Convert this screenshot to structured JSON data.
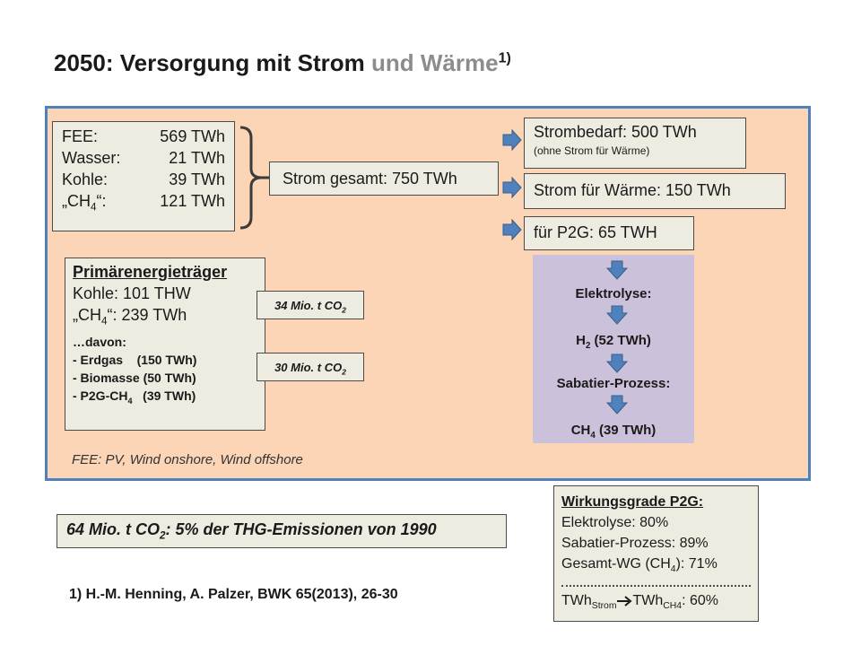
{
  "title": {
    "main": "2050: Versorgung mit Strom",
    "light": "und Wärme",
    "footnote_mark": "1)"
  },
  "fee_box": {
    "rows": [
      {
        "label": "FEE:",
        "value": "569 TWh"
      },
      {
        "label": "Wasser:",
        "value": "21 TWh"
      },
      {
        "label": "Kohle:",
        "value": "39 TWh"
      },
      {
        "label_pre": "„CH",
        "label_sub": "4",
        "label_post": "“:",
        "value": "121 TWh"
      }
    ]
  },
  "strom_gesamt": "Strom gesamt: 750 TWh",
  "strombedarf": {
    "main": "Strombedarf: 500 TWh",
    "sub": "(ohne Strom für Wärme)"
  },
  "strom_waerme": "Strom für Wärme: 150 TWh",
  "p2g": "für P2G: 65 TWH",
  "process": {
    "elektrolyse": "Elektrolyse:",
    "h2_pre": "H",
    "h2_sub": "2",
    "h2_post": " (52 TWh)",
    "sabatier": "Sabatier-Prozess:",
    "ch4_pre": "CH",
    "ch4_sub": "4",
    "ch4_post": " (39 TWh)"
  },
  "primaer": {
    "heading": "Primärenergieträger",
    "kohle": "Kohle: 101 THW",
    "ch4_pre": "„CH",
    "ch4_sub": "4",
    "ch4_post": "“: 239 TWh",
    "davon": "…davon:",
    "erdgas": "- Erdgas    (150 TWh)",
    "biomasse": "- Biomasse (50 TWh)",
    "p2g_pre": "- P2G-CH",
    "p2g_sub": "4",
    "p2g_post": "   (39 TWh)"
  },
  "co2_a": {
    "pre": "34 Mio. t CO",
    "sub": "2"
  },
  "co2_b": {
    "pre": "30 Mio. t CO",
    "sub": "2"
  },
  "fee_note": "FEE: PV, Wind onshore, Wind offshore",
  "emissions": {
    "pre": "64 Mio. t CO",
    "sub": "2",
    "post": ": 5% der THG-Emissionen von 1990"
  },
  "wirkungsgrade": {
    "heading": "Wirkungsgrade P2G:",
    "elektrolyse": "Elektrolyse: 80%",
    "sabatier": "Sabatier-Prozess: 89%",
    "gesamt_pre": "Gesamt-WG (CH",
    "gesamt_sub": "4",
    "gesamt_post": "): 71%",
    "twh_a": "TWh",
    "twh_a_sub": "Strom",
    "twh_b": "TWh",
    "twh_b_sub": "CH4",
    "twh_post": ": 60%"
  },
  "reference": "1) H.-M. Henning, A. Palzer, BWK 65(2013), 26-30",
  "colors": {
    "panel_bg": "#fbd5b5",
    "panel_border": "#4f81bd",
    "box_bg": "#eeece1",
    "purple": "#ccc1da",
    "arrow": "#4f81bd"
  },
  "icons": {
    "arrow_right": "arrow-right-icon",
    "arrow_down": "arrow-down-icon",
    "bracket": "right-bracket-icon"
  }
}
